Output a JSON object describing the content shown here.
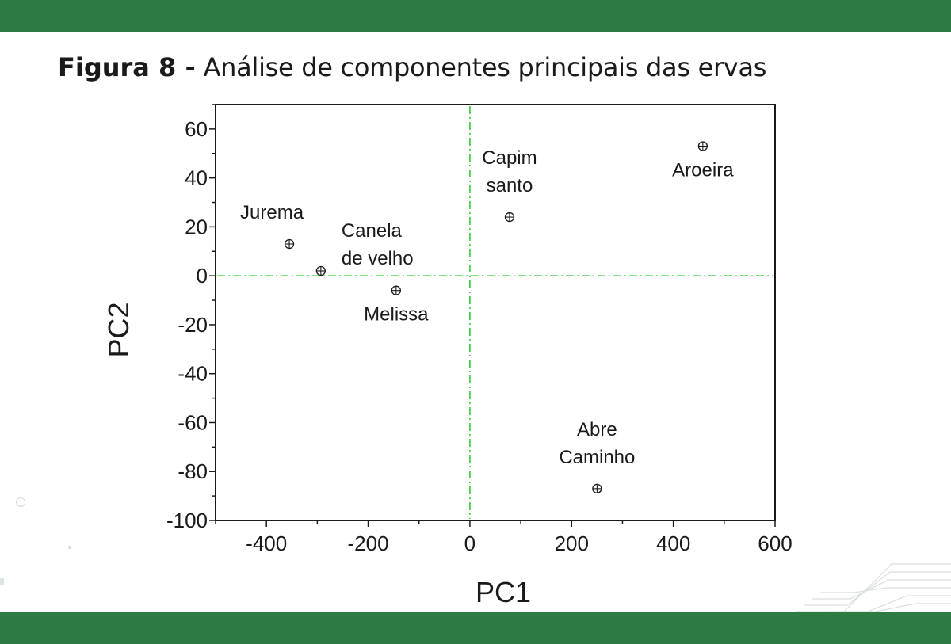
{
  "caption": {
    "label": "Figura 8 -",
    "text": " Análise de componentes principais das ervas"
  },
  "chart_data": {
    "type": "scatter",
    "xlabel": "PC1",
    "ylabel": "PC2",
    "xlim": [
      -500,
      600
    ],
    "ylim": [
      -100,
      70
    ],
    "x_ticks": [
      -400,
      -200,
      0,
      200,
      400,
      600
    ],
    "y_ticks": [
      60,
      40,
      20,
      0,
      -20,
      -40,
      -60,
      -80,
      -100
    ],
    "reference_lines": {
      "x": 0,
      "y": 0,
      "style": "dash-dot",
      "color": "#33cc33"
    },
    "grid": false,
    "legend": "none",
    "marker": "circle-plus",
    "points": [
      {
        "label": [
          "Jurema"
        ],
        "x": -355,
        "y": 13,
        "label_pos": "above-left"
      },
      {
        "label": [
          "Canela",
          "de velho"
        ],
        "x": -293,
        "y": 2,
        "label_pos": "above-right"
      },
      {
        "label": [
          "Melissa"
        ],
        "x": -145,
        "y": -6,
        "label_pos": "below"
      },
      {
        "label": [
          "Capim",
          "santo"
        ],
        "x": 78,
        "y": 24,
        "label_pos": "above"
      },
      {
        "label": [
          "Aroeira"
        ],
        "x": 458,
        "y": 53,
        "label_pos": "below"
      },
      {
        "label": [
          "Abre",
          "Caminho"
        ],
        "x": 250,
        "y": -87,
        "label_pos": "above"
      }
    ]
  },
  "colors": {
    "band": "#2e7a44",
    "reference": "#33cc33",
    "ink": "#1a1a1a"
  }
}
